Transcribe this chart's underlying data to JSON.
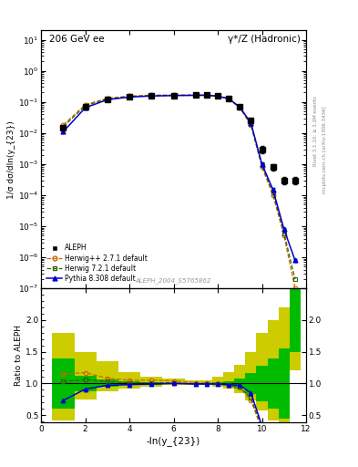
{
  "title_left": "206 GeV ee",
  "title_right": "γ*/Z (Hadronic)",
  "ylabel_main": "1/σ dσ/dln(y_{23})",
  "ylabel_ratio": "Ratio to ALEPH",
  "xlabel": "-ln(y_{23})",
  "watermark": "ALEPH_2004_S5765862",
  "right_label1": "Rivet 3.1.10; ≥ 3.2M events",
  "right_label2": "mcplots.cern.ch [arXiv:1306.3436]",
  "aleph_x": [
    1.0,
    2.0,
    3.0,
    4.0,
    5.0,
    6.0,
    7.0,
    7.5,
    8.0,
    8.5,
    9.0,
    9.5,
    10.0,
    10.5,
    11.0,
    11.5
  ],
  "aleph_y": [
    0.015,
    0.07,
    0.12,
    0.145,
    0.155,
    0.16,
    0.165,
    0.165,
    0.155,
    0.13,
    0.07,
    0.025,
    0.003,
    0.0008,
    0.0003,
    0.0003
  ],
  "aleph_yerr": [
    0.002,
    0.004,
    0.005,
    0.005,
    0.005,
    0.005,
    0.005,
    0.005,
    0.005,
    0.005,
    0.003,
    0.002,
    0.0008,
    0.0002,
    8e-05,
    8e-05
  ],
  "herwig_x": [
    1.0,
    2.0,
    3.0,
    4.0,
    5.0,
    6.0,
    7.0,
    7.5,
    8.0,
    8.5,
    9.0,
    9.5,
    10.0,
    10.5,
    11.0,
    11.5
  ],
  "herwig_y": [
    0.018,
    0.082,
    0.13,
    0.155,
    0.165,
    0.168,
    0.167,
    0.166,
    0.155,
    0.125,
    0.065,
    0.018,
    0.0008,
    0.0001,
    5e-06,
    1e-07
  ],
  "herwig7_x": [
    1.0,
    2.0,
    3.0,
    4.0,
    5.0,
    6.0,
    7.0,
    7.5,
    8.0,
    8.5,
    9.0,
    9.5,
    10.0,
    10.5,
    11.0,
    11.5
  ],
  "herwig7_y": [
    0.016,
    0.075,
    0.125,
    0.148,
    0.158,
    0.162,
    0.163,
    0.163,
    0.153,
    0.125,
    0.065,
    0.019,
    0.0009,
    0.00012,
    6e-06,
    2e-07
  ],
  "pythia_x": [
    1.0,
    2.0,
    3.0,
    4.0,
    5.0,
    6.0,
    7.0,
    7.5,
    8.0,
    8.5,
    9.0,
    9.5,
    10.0,
    10.5,
    11.0,
    11.5
  ],
  "pythia_y": [
    0.011,
    0.065,
    0.118,
    0.143,
    0.155,
    0.16,
    0.163,
    0.163,
    0.153,
    0.127,
    0.068,
    0.021,
    0.001,
    0.00015,
    8e-06,
    8e-07
  ],
  "pythia_yerr_low": [
    0.001,
    0.002,
    0.002,
    0.002,
    0.002,
    0.002,
    0.002,
    0.002,
    0.002,
    0.002,
    0.002,
    0.002,
    0.0001,
    2e-05,
    1e-06,
    1e-07
  ],
  "pythia_yerr_high": [
    0.001,
    0.002,
    0.002,
    0.002,
    0.002,
    0.002,
    0.002,
    0.002,
    0.002,
    0.002,
    0.002,
    0.002,
    0.0001,
    2e-05,
    1e-06,
    1e-07
  ],
  "band_edges": [
    0.5,
    1.5,
    2.5,
    3.5,
    4.5,
    5.5,
    6.5,
    7.25,
    7.75,
    8.25,
    8.75,
    9.25,
    9.75,
    10.25,
    10.75,
    11.25,
    11.75
  ],
  "band_green_lo": [
    0.6,
    0.88,
    0.94,
    0.97,
    0.98,
    0.99,
    0.99,
    0.99,
    0.98,
    0.96,
    0.92,
    0.83,
    0.72,
    0.6,
    0.45,
    1.5,
    2.2
  ],
  "band_green_hi": [
    1.4,
    1.12,
    1.06,
    1.03,
    1.02,
    1.01,
    1.01,
    1.01,
    1.02,
    1.04,
    1.08,
    1.17,
    1.28,
    1.4,
    1.55,
    2.5,
    2.5
  ],
  "band_yellow_lo": [
    0.42,
    0.75,
    0.87,
    0.92,
    0.95,
    0.97,
    0.97,
    0.97,
    0.95,
    0.92,
    0.85,
    0.73,
    0.57,
    0.42,
    0.28,
    1.2,
    1.8
  ],
  "band_yellow_hi": [
    1.8,
    1.5,
    1.35,
    1.18,
    1.1,
    1.07,
    1.05,
    1.05,
    1.1,
    1.18,
    1.3,
    1.5,
    1.8,
    2.0,
    2.2,
    2.5,
    2.5
  ],
  "ratio_herwig_x": [
    1.0,
    2.0,
    3.0,
    4.0,
    5.0,
    6.0,
    7.0,
    7.5,
    8.0,
    8.5,
    9.0,
    9.5,
    10.0,
    10.5,
    11.0
  ],
  "ratio_herwig_y": [
    1.15,
    1.17,
    1.08,
    1.05,
    1.05,
    1.04,
    1.01,
    1.01,
    1.0,
    0.96,
    0.93,
    0.73,
    0.27,
    0.13,
    0.04
  ],
  "ratio_herwig7_x": [
    1.0,
    2.0,
    3.0,
    4.0,
    5.0,
    6.0,
    7.0,
    7.5,
    8.0,
    8.5,
    9.0,
    9.5,
    10.0,
    10.5,
    11.0
  ],
  "ratio_herwig7_y": [
    1.03,
    1.06,
    1.03,
    1.01,
    1.01,
    1.01,
    0.99,
    0.99,
    0.99,
    0.97,
    0.94,
    0.77,
    0.3,
    0.15,
    0.04
  ],
  "ratio_pythia_x": [
    1.0,
    2.0,
    3.0,
    4.0,
    5.0,
    6.0,
    7.0,
    7.5,
    8.0,
    8.5,
    9.0,
    9.5,
    10.0,
    10.5,
    11.0
  ],
  "ratio_pythia_y": [
    0.73,
    0.91,
    0.97,
    0.98,
    0.99,
    1.0,
    0.99,
    0.99,
    0.99,
    0.98,
    0.97,
    0.85,
    0.33,
    0.19,
    0.027
  ],
  "color_aleph": "#000000",
  "color_herwig": "#cc6600",
  "color_herwig7": "#336600",
  "color_pythia": "#0000cc",
  "color_band_green": "#00bb00",
  "color_band_yellow": "#cccc00",
  "main_ylim": [
    1e-07,
    20
  ],
  "ratio_ylim": [
    0.38,
    2.5
  ],
  "ratio_yticks": [
    0.5,
    1.0,
    1.5,
    2.0
  ],
  "xlim": [
    0,
    12
  ]
}
